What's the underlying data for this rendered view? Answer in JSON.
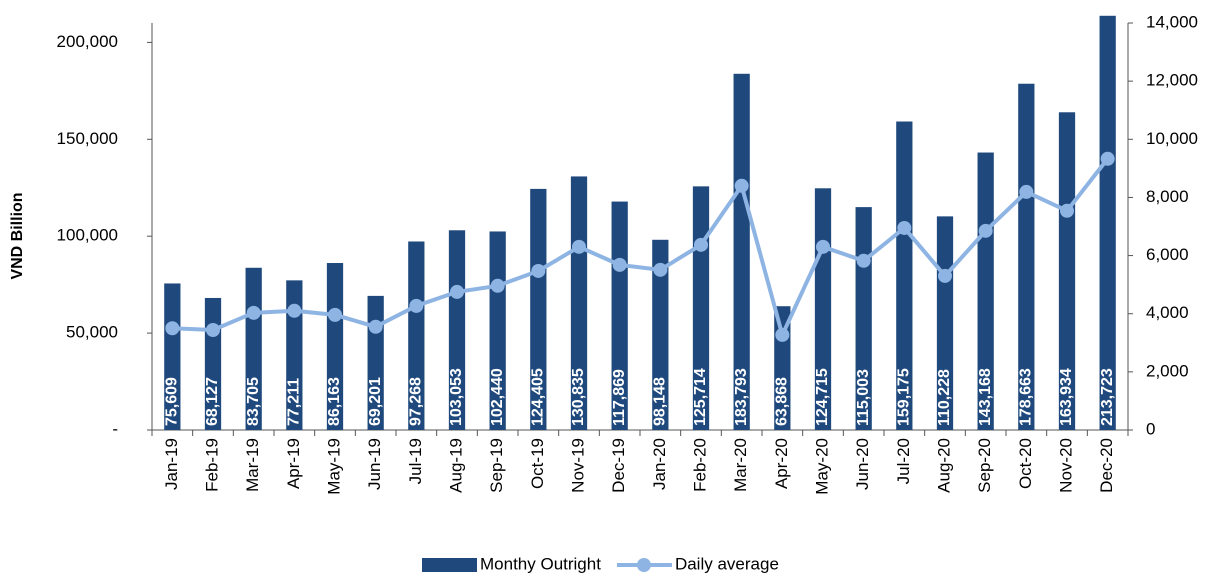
{
  "chart_data": {
    "type": "bar",
    "y_label": "VND Billion",
    "categories": [
      "Jan-19",
      "Feb-19",
      "Mar-19",
      "Apr-19",
      "May-19",
      "Jun-19",
      "Jul-19",
      "Aug-19",
      "Sep-19",
      "Oct-19",
      "Nov-19",
      "Dec-19",
      "Jan-20",
      "Feb-20",
      "Mar-20",
      "Apr-20",
      "May-20",
      "Jun-20",
      "Jul-20",
      "Aug-20",
      "Sep-20",
      "Oct-20",
      "Nov-20",
      "Dec-20"
    ],
    "series": [
      {
        "name": "Monthy Outright",
        "type": "bar",
        "color": "#1f497d",
        "values": [
          75609,
          68127,
          83705,
          77211,
          86163,
          69201,
          97268,
          103053,
          102440,
          124405,
          130835,
          117869,
          98148,
          125714,
          183793,
          63868,
          124715,
          115003,
          159175,
          110228,
          143168,
          178663,
          163934,
          213723
        ],
        "value_labels": [
          "75,609",
          "68,127",
          "83,705",
          "77,211",
          "86,163",
          "69,201",
          "97,268",
          "103,053",
          "102,440",
          "124,405",
          "130,835",
          "117,869",
          "98,148",
          "125,714",
          "183,793",
          "63,868",
          "124,715",
          "115,003",
          "159,175",
          "110,228",
          "143,168",
          "178,663",
          "163,934",
          "213,723"
        ]
      },
      {
        "name": "Daily average",
        "type": "line",
        "axis": "y2",
        "color": "#8eb4e3",
        "values": [
          3500,
          3440,
          4030,
          4100,
          3960,
          3550,
          4270,
          4750,
          4960,
          5470,
          6300,
          5680,
          5510,
          6370,
          8400,
          3270,
          6300,
          5820,
          6950,
          5300,
          6850,
          8190,
          7540,
          9330
        ]
      }
    ],
    "ylim": [
      0,
      210000
    ],
    "yticks": [
      {
        "value": 0,
        "label": "-"
      },
      {
        "value": 50000,
        "label": "50,000"
      },
      {
        "value": 100000,
        "label": "100,000"
      },
      {
        "value": 150000,
        "label": "150,000"
      },
      {
        "value": 200000,
        "label": "200,000"
      }
    ],
    "y2lim": [
      0,
      14000
    ],
    "y2ticks": [
      0,
      {
        "value": 2000,
        "label": "2,000"
      },
      {
        "value": 4000,
        "label": "4,000"
      },
      {
        "value": 6000,
        "label": "6,000"
      },
      {
        "value": 8000,
        "label": "8,000"
      },
      {
        "value": 10000,
        "label": "10,000"
      },
      {
        "value": 12000,
        "label": "12,000"
      },
      {
        "value": 14000,
        "label": "14,000"
      }
    ],
    "legend": "bottom"
  }
}
